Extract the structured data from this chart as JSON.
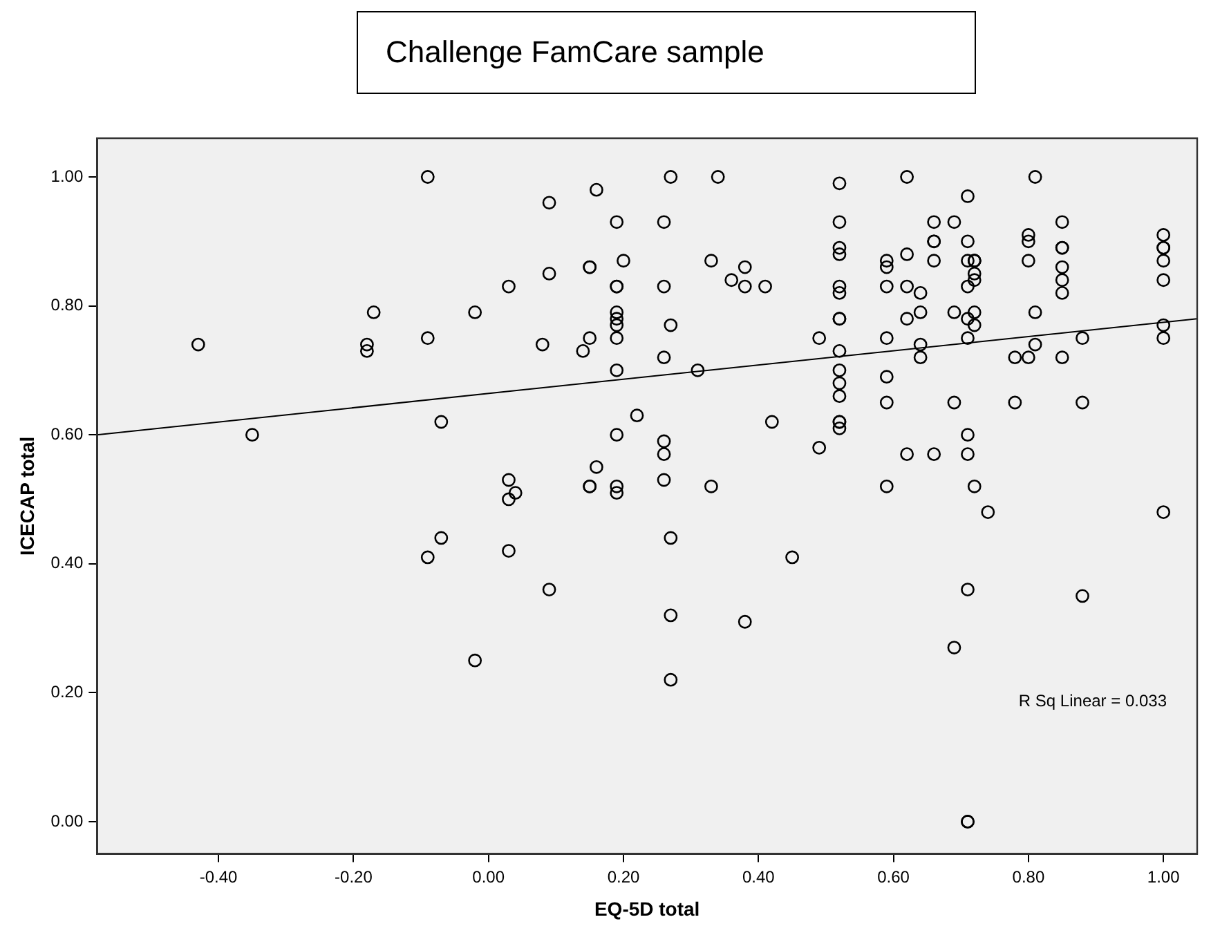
{
  "chart_data": {
    "type": "scatter",
    "title": "Challenge FamCare sample",
    "xlabel": "EQ-5D total",
    "ylabel": "ICECAP total",
    "annotations": [
      "R Sq Linear = 0.033"
    ],
    "marker": "circle",
    "xlim": [
      -0.58,
      1.05
    ],
    "ylim": [
      -0.05,
      1.06
    ],
    "xticks": [
      {
        "value": -0.4,
        "label": "-0.40"
      },
      {
        "value": -0.2,
        "label": "-0.20"
      },
      {
        "value": 0,
        "label": "0.00"
      },
      {
        "value": 0.2,
        "label": "0.20"
      },
      {
        "value": 0.4,
        "label": "0.40"
      },
      {
        "value": 0.6,
        "label": "0.60"
      },
      {
        "value": 0.8,
        "label": "0.80"
      },
      {
        "value": 1,
        "label": "1.00"
      }
    ],
    "yticks": [
      {
        "value": 0,
        "label": "0.00"
      },
      {
        "value": 0.2,
        "label": "0.20"
      },
      {
        "value": 0.4,
        "label": "0.40"
      },
      {
        "value": 0.6,
        "label": "0.60"
      },
      {
        "value": 0.8,
        "label": "0.80"
      },
      {
        "value": 1,
        "label": "1.00"
      }
    ],
    "series": [
      {
        "color": "#000000",
        "x": [
          -0.43,
          -0.09,
          -0.17,
          -0.18,
          -0.18,
          -0.09,
          -0.35,
          -0.07,
          -0.07,
          -0.09,
          0.27,
          0.34,
          0.09,
          0.16,
          0.19,
          0.26,
          0.15,
          0.15,
          0.2,
          0.33,
          0.38,
          0.36,
          0.38,
          0.41,
          0.09,
          0.03,
          0.19,
          0.19,
          0.26,
          -0.02,
          0.19,
          0.19,
          0.19,
          0.27,
          0.49,
          0.08,
          0.15,
          0.14,
          0.19,
          0.26,
          0.19,
          0.31,
          0.22,
          0.42,
          0.19,
          0.26,
          0.26,
          0.49,
          0.16,
          0.15,
          0.15,
          0.03,
          0.04,
          0.19,
          0.19,
          0.26,
          0.33,
          0.03,
          0.03,
          0.09,
          -0.02,
          0.27,
          0.27,
          0.27,
          0.38,
          0.45,
          0.52,
          0.52,
          0.52,
          0.52,
          0.52,
          0.52,
          0.52,
          0.52,
          0.52,
          0.52,
          0.52,
          0.52,
          0.52,
          0.52,
          0.52,
          0.59,
          0.59,
          0.59,
          0.59,
          0.59,
          0.59,
          0.59,
          0.62,
          0.62,
          0.62,
          0.62,
          0.62,
          0.64,
          0.64,
          0.64,
          0.64,
          0.66,
          0.66,
          0.66,
          0.66,
          0.66,
          0.69,
          0.69,
          0.69,
          0.71,
          0.71,
          0.71,
          0.71,
          0.71,
          0.71,
          0.71,
          0.71,
          0.72,
          0.72,
          0.72,
          0.72,
          0.72,
          0.72,
          0.72,
          0.72,
          0.74,
          0.78,
          0.78,
          0.8,
          0.8,
          0.8,
          0.8,
          0.81,
          0.81,
          0.81,
          0.85,
          0.85,
          0.85,
          0.85,
          0.85,
          0.85,
          0.85,
          0.88,
          0.88,
          1.0,
          1.0,
          1.0,
          1.0,
          1.0,
          1.0,
          1.0,
          1.0,
          0.71,
          0.88,
          0.69,
          0.71,
          0.71
        ],
        "values": [
          0.74,
          1.0,
          0.79,
          0.74,
          0.73,
          0.75,
          0.6,
          0.62,
          0.44,
          0.41,
          1.0,
          1.0,
          0.96,
          0.98,
          0.93,
          0.93,
          0.86,
          0.86,
          0.87,
          0.87,
          0.86,
          0.84,
          0.83,
          0.83,
          0.85,
          0.83,
          0.83,
          0.83,
          0.83,
          0.79,
          0.79,
          0.78,
          0.77,
          0.77,
          0.75,
          0.74,
          0.75,
          0.73,
          0.75,
          0.72,
          0.7,
          0.7,
          0.63,
          0.62,
          0.6,
          0.59,
          0.57,
          0.58,
          0.55,
          0.52,
          0.52,
          0.53,
          0.51,
          0.52,
          0.51,
          0.53,
          0.52,
          0.5,
          0.42,
          0.36,
          0.25,
          0.44,
          0.32,
          0.22,
          0.31,
          0.41,
          0.99,
          0.93,
          0.89,
          0.88,
          0.83,
          0.82,
          0.78,
          0.78,
          0.73,
          0.7,
          0.68,
          0.66,
          0.62,
          0.62,
          0.61,
          0.87,
          0.86,
          0.83,
          0.75,
          0.69,
          0.65,
          0.52,
          1.0,
          0.88,
          0.83,
          0.78,
          0.57,
          0.82,
          0.79,
          0.74,
          0.72,
          0.93,
          0.9,
          0.9,
          0.87,
          0.57,
          0.93,
          0.79,
          0.65,
          0.9,
          0.87,
          0.83,
          0.78,
          0.75,
          0.6,
          0.57,
          0.97,
          0.87,
          0.87,
          0.87,
          0.85,
          0.84,
          0.79,
          0.77,
          0.52,
          0.48,
          0.72,
          0.65,
          0.91,
          0.9,
          0.87,
          0.72,
          1.0,
          0.79,
          0.74,
          0.93,
          0.89,
          0.89,
          0.86,
          0.84,
          0.82,
          0.72,
          0.75,
          0.65,
          0.91,
          0.89,
          0.89,
          0.87,
          0.84,
          0.77,
          0.75,
          0.48,
          0.36,
          0.35,
          0.27,
          0.0,
          0.0
        ]
      },
      {
        "type": "line",
        "marker": "none",
        "color": "#000000",
        "x": [
          -0.58,
          1.05
        ],
        "values": [
          0.6,
          0.78
        ]
      }
    ]
  }
}
